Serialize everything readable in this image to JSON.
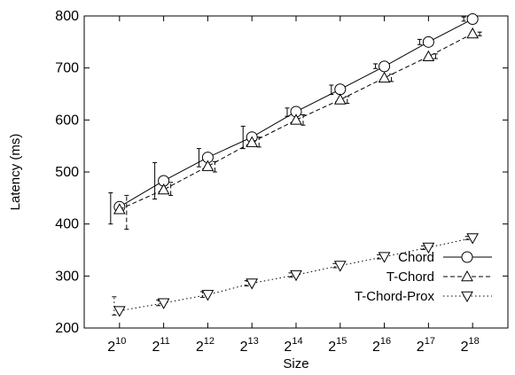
{
  "chart_data": {
    "type": "line",
    "xlabel": "Size",
    "ylabel": "Latency (ms)",
    "ylim": [
      200,
      800
    ],
    "yticks": [
      200,
      300,
      400,
      500,
      600,
      700,
      800
    ],
    "categories": [
      "2^10",
      "2^11",
      "2^12",
      "2^13",
      "2^14",
      "2^15",
      "2^16",
      "2^17",
      "2^18"
    ],
    "x_tick_base": "2",
    "x_tick_exponents": [
      "10",
      "11",
      "12",
      "13",
      "14",
      "15",
      "16",
      "17",
      "18"
    ],
    "grid": false,
    "legend_position": "bottom-right",
    "series": [
      {
        "name": "Chord",
        "marker": "circle",
        "line_style": "solid",
        "values": [
          433,
          483,
          528,
          567,
          616,
          659,
          703,
          750,
          794
        ],
        "error_bars": [
          [
            400,
            460
          ],
          [
            448,
            518
          ],
          [
            510,
            545
          ],
          [
            545,
            588
          ],
          [
            607,
            623
          ],
          [
            649,
            667
          ],
          [
            699,
            708
          ],
          [
            745,
            755
          ],
          [
            790,
            798
          ]
        ]
      },
      {
        "name": "T-Chord",
        "marker": "triangle-up",
        "line_style": "dashed",
        "values": [
          428,
          466,
          511,
          557,
          600,
          639,
          681,
          722,
          766
        ],
        "error_bars": [
          [
            390,
            455
          ],
          [
            455,
            480
          ],
          [
            500,
            520
          ],
          [
            548,
            567
          ],
          [
            590,
            610
          ],
          [
            632,
            645
          ],
          [
            674,
            688
          ],
          [
            718,
            727
          ],
          [
            762,
            769
          ]
        ]
      },
      {
        "name": "T-Chord-Prox",
        "marker": "triangle-down",
        "line_style": "dotted",
        "values": [
          233,
          248,
          264,
          286,
          302,
          320,
          337,
          355,
          373
        ],
        "error_bars": [
          [
            225,
            260
          ],
          [
            243,
            254
          ],
          [
            259,
            270
          ],
          [
            281,
            291
          ],
          [
            298,
            306
          ],
          [
            316,
            324
          ],
          [
            333,
            341
          ],
          [
            351,
            358
          ],
          [
            370,
            376
          ]
        ]
      }
    ]
  }
}
